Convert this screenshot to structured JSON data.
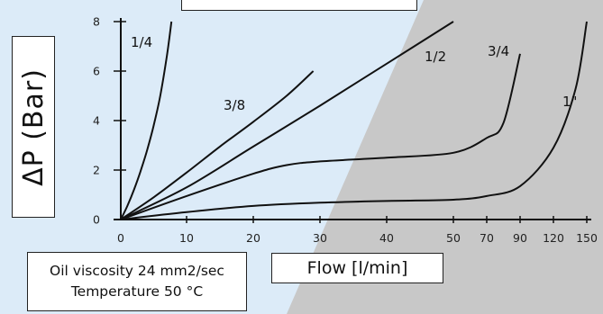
{
  "chart_data": {
    "type": "line",
    "title": "",
    "ylabel": "ΔP (Bar)",
    "xlabel": "Flow [l/min]",
    "ylim": [
      0,
      8
    ],
    "y_ticks": [
      "0",
      "2",
      "4",
      "6",
      "8"
    ],
    "y_tick_values": [
      0,
      2,
      4,
      6,
      8
    ],
    "x_ticks": [
      "0",
      "10",
      "20",
      "30",
      "40",
      "50",
      "70",
      "90",
      "120",
      "150"
    ],
    "x_tick_values": [
      0,
      10,
      20,
      30,
      40,
      50,
      70,
      90,
      120,
      150
    ],
    "x_scale": "piecewise: 0-50 linear, then 70, 90, 120, 150",
    "grid": false,
    "legend": "labels next to curves",
    "series": [
      {
        "name": "1/4",
        "x": [
          0,
          1,
          2,
          3,
          4,
          5,
          6,
          7,
          7.7
        ],
        "y": [
          0,
          0.55,
          1.2,
          1.95,
          2.8,
          3.8,
          5.0,
          6.6,
          8.0
        ]
      },
      {
        "name": "3/8",
        "x": [
          0,
          5,
          10,
          15,
          20,
          25,
          29
        ],
        "y": [
          0,
          0.9,
          1.9,
          2.95,
          3.95,
          5.0,
          6.0
        ]
      },
      {
        "name": "1/2",
        "x": [
          0,
          10,
          20,
          30,
          40,
          50
        ],
        "y": [
          0,
          1.3,
          2.95,
          4.6,
          6.3,
          8.0
        ]
      },
      {
        "name": "3/4",
        "x": [
          0,
          10,
          20,
          25,
          30,
          40,
          50,
          70,
          80,
          90
        ],
        "y": [
          0,
          0.95,
          1.85,
          2.2,
          2.35,
          2.5,
          2.7,
          3.3,
          3.9,
          6.7
        ]
      },
      {
        "name": "1\"",
        "x": [
          0,
          10,
          20,
          30,
          40,
          50,
          70,
          90,
          120,
          140,
          150
        ],
        "y": [
          0,
          0.3,
          0.55,
          0.68,
          0.75,
          0.8,
          0.95,
          1.35,
          2.9,
          5.3,
          8.0
        ]
      }
    ],
    "colors": {
      "line": "#111111",
      "bg_light": "#dcebf8",
      "bg_gray": "#c8c8c8"
    }
  },
  "note": {
    "line1": "Oil viscosity 24 mm2/sec",
    "line2": "Temperature 50 °C"
  }
}
